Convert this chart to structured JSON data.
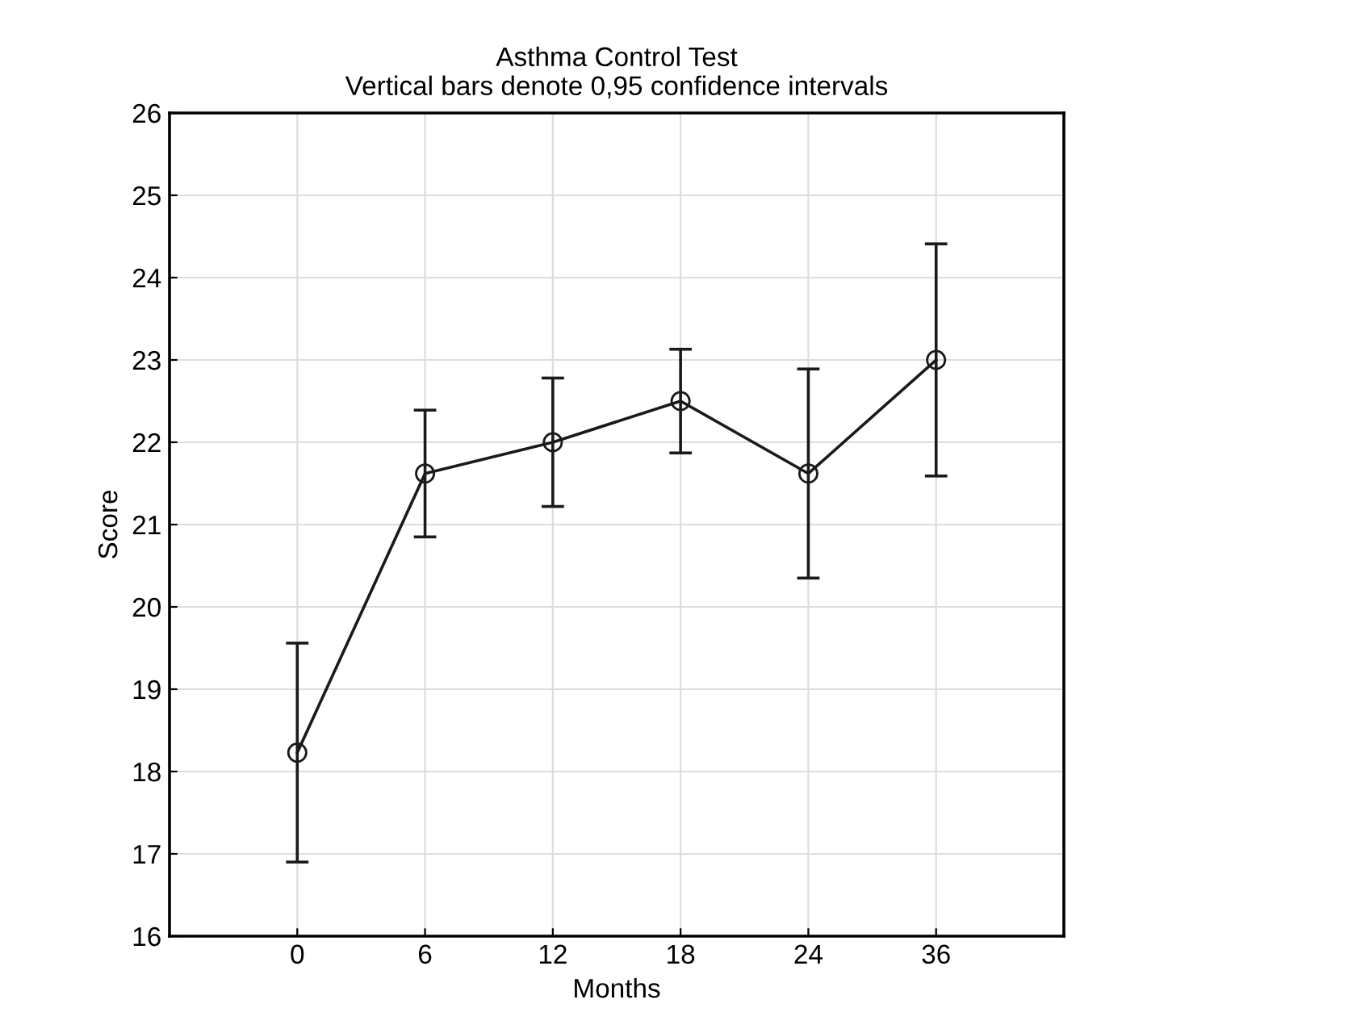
{
  "chart_data": {
    "type": "line",
    "title": "Asthma Control Test",
    "subtitle": "Vertical bars denote 0,95 confidence intervals",
    "xlabel": "Months",
    "ylabel": "Score",
    "categories": [
      "0",
      "6",
      "12",
      "18",
      "24",
      "36"
    ],
    "series": [
      {
        "color": "#1a1a1a",
        "values": [
          18.23,
          21.62,
          22.0,
          22.5,
          21.62,
          23.0
        ],
        "errors": [
          1.33,
          0.77,
          0.78,
          0.63,
          1.27,
          1.41
        ]
      }
    ],
    "ylim": [
      16,
      26
    ],
    "yticks": [
      16,
      17,
      18,
      19,
      20,
      21,
      22,
      23,
      24,
      25,
      26
    ],
    "grid": true,
    "marker": "circle",
    "line_style": "solid"
  }
}
